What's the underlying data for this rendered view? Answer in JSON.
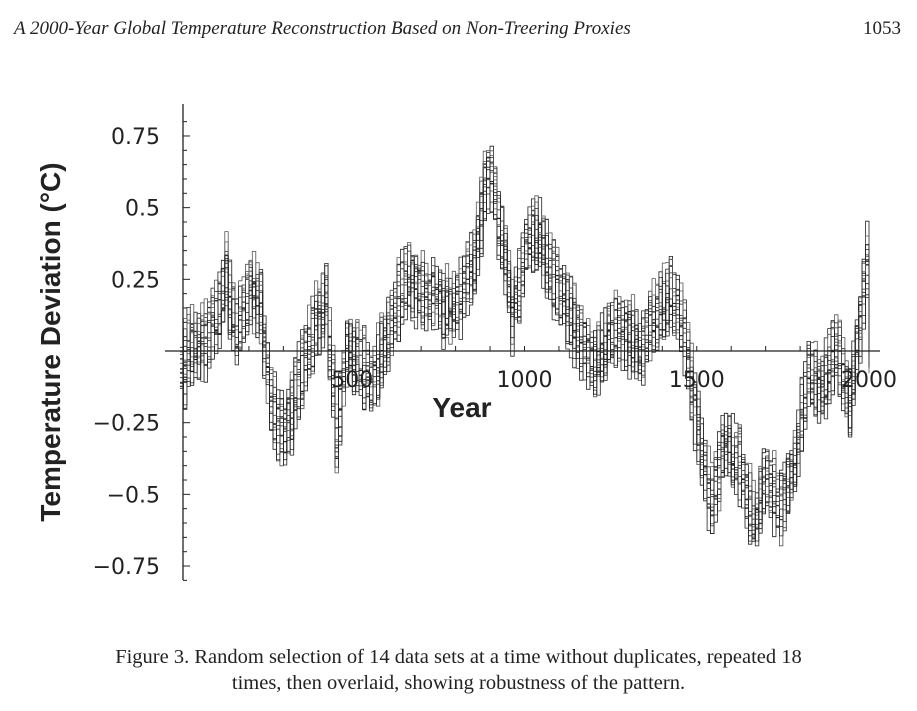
{
  "header": {
    "running_title": "A 2000-Year Global Temperature Reconstruction Based on Non-Treering Proxies",
    "page_number": "1053"
  },
  "caption": {
    "line1": "Figure 3. Random selection of 14 data sets at a time without duplicates, repeated 18",
    "line2": "times, then overlaid, showing robustness of the pattern."
  },
  "chart_data": {
    "type": "line",
    "title": "",
    "xlabel": "Year",
    "ylabel": "Temperature Deviation (°C)",
    "xlim": [
      0,
      2000
    ],
    "ylim": [
      -0.8,
      0.8
    ],
    "x_ticks": [
      500,
      1000,
      1500,
      2000
    ],
    "x_tick_labels": [
      "500",
      "1000",
      "1500",
      "2000"
    ],
    "y_ticks": [
      0.75,
      0.5,
      0.25,
      -0.25,
      -0.5,
      -0.75
    ],
    "y_tick_labels": [
      "0.75",
      "0.5",
      "0.25",
      "−0.25",
      "−0.5",
      "−0.75"
    ],
    "series_count": 18,
    "line_color": "#222222",
    "mean_series": {
      "x": [
        0,
        20,
        60,
        100,
        130,
        160,
        200,
        230,
        260,
        300,
        340,
        380,
        420,
        450,
        480,
        520,
        560,
        600,
        650,
        700,
        760,
        800,
        850,
        880,
        900,
        940,
        960,
        1000,
        1040,
        1080,
        1120,
        1160,
        1200,
        1240,
        1300,
        1340,
        1380,
        1420,
        1460,
        1500,
        1540,
        1580,
        1620,
        1660,
        1700,
        1740,
        1780,
        1820,
        1860,
        1900,
        1940,
        1970,
        1990,
        2000
      ],
      "y": [
        -0.1,
        0.0,
        0.02,
        0.1,
        0.25,
        0.05,
        0.2,
        0.15,
        -0.2,
        -0.3,
        -0.12,
        0.05,
        0.18,
        -0.3,
        0.0,
        -0.05,
        -0.1,
        0.05,
        0.25,
        0.2,
        0.15,
        0.15,
        0.3,
        0.55,
        0.6,
        0.3,
        0.1,
        0.35,
        0.4,
        0.25,
        0.15,
        0.02,
        -0.05,
        0.05,
        0.05,
        0.0,
        0.12,
        0.2,
        0.05,
        -0.3,
        -0.55,
        -0.3,
        -0.4,
        -0.6,
        -0.45,
        -0.55,
        -0.4,
        -0.1,
        -0.15,
        0.0,
        -0.2,
        0.1,
        0.3,
        0.05
      ]
    }
  }
}
